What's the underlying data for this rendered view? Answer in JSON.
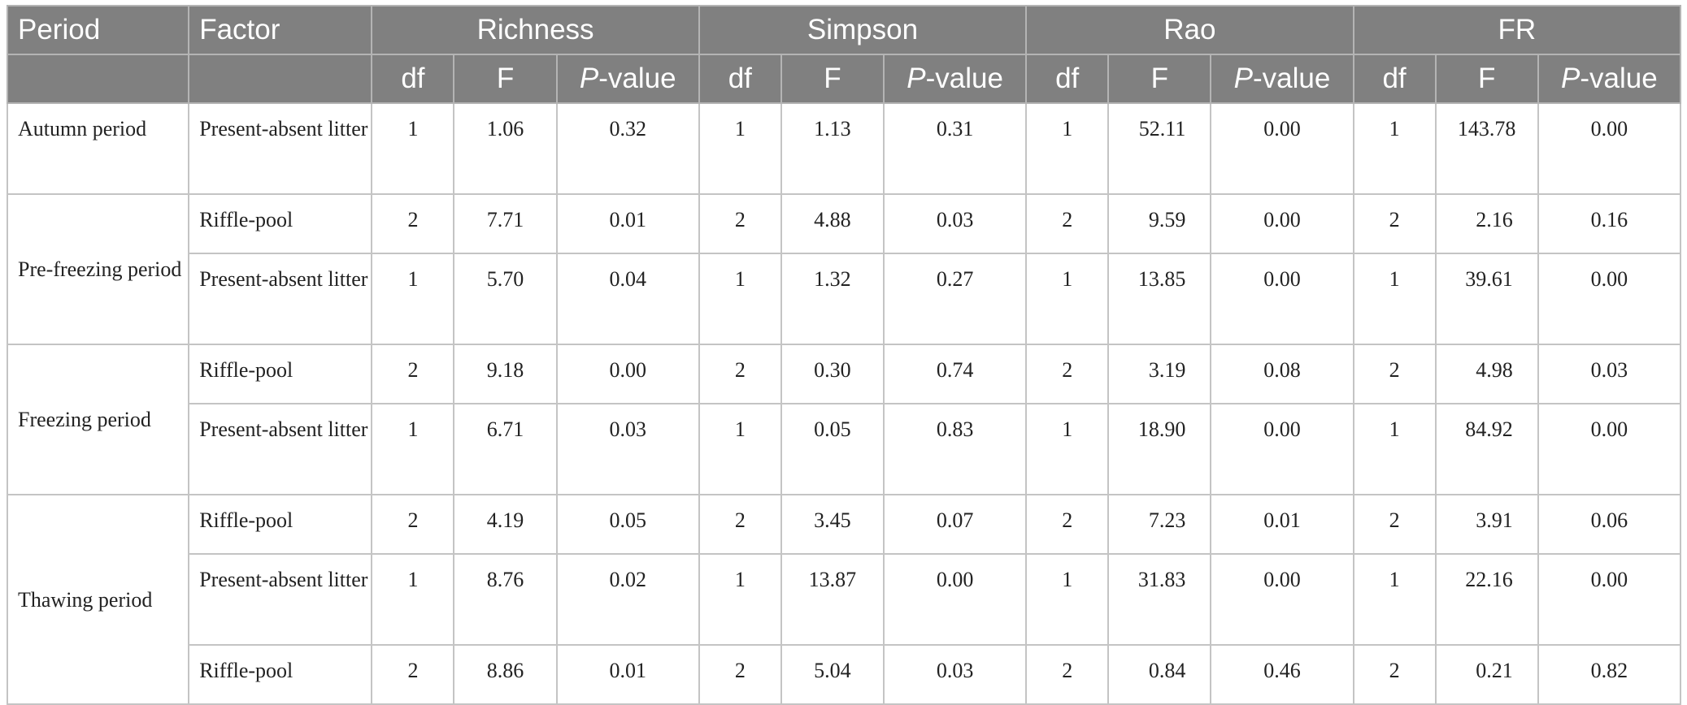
{
  "header": {
    "period": "Period",
    "factor": "Factor",
    "groups": [
      "Richness",
      "Simpson",
      "Rao",
      "FR"
    ],
    "sub_df": "df",
    "sub_f": "F",
    "sub_p_italic": "P",
    "sub_p_rest": "-value"
  },
  "rows": [
    {
      "period": "Autumn period",
      "factor": "Present-absent litter",
      "v": [
        "1",
        "1.06",
        "0.32",
        "1",
        "1.13",
        "0.31",
        "1",
        "52.11",
        "0.00",
        "1",
        "143.78",
        "0.00"
      ]
    },
    {
      "period": "Pre-freezing period",
      "factor": "Riffle-pool",
      "v": [
        "2",
        "7.71",
        "0.01",
        "2",
        "4.88",
        "0.03",
        "2",
        "9.59",
        "0.00",
        "2",
        "2.16",
        "0.16"
      ]
    },
    {
      "period": "",
      "factor": "Present-absent litter",
      "v": [
        "1",
        "5.70",
        "0.04",
        "1",
        "1.32",
        "0.27",
        "1",
        "13.85",
        "0.00",
        "1",
        "39.61",
        "0.00"
      ]
    },
    {
      "period": "Freezing period",
      "factor": "Riffle-pool",
      "v": [
        "2",
        "9.18",
        "0.00",
        "2",
        "0.30",
        "0.74",
        "2",
        "3.19",
        "0.08",
        "2",
        "4.98",
        "0.03"
      ]
    },
    {
      "period": "",
      "factor": "Present-absent litter",
      "v": [
        "1",
        "6.71",
        "0.03",
        "1",
        "0.05",
        "0.83",
        "1",
        "18.90",
        "0.00",
        "1",
        "84.92",
        "0.00"
      ]
    },
    {
      "period": "Thawing period",
      "factor": "Riffle-pool",
      "v": [
        "2",
        "4.19",
        "0.05",
        "2",
        "3.45",
        "0.07",
        "2",
        "7.23",
        "0.01",
        "2",
        "3.91",
        "0.06"
      ]
    },
    {
      "period": "",
      "factor": "Present-absent litter",
      "v": [
        "1",
        "8.76",
        "0.02",
        "1",
        "13.87",
        "0.00",
        "1",
        "31.83",
        "0.00",
        "1",
        "22.16",
        "0.00"
      ]
    },
    {
      "period": "",
      "factor": "Riffle-pool",
      "v": [
        "2",
        "8.86",
        "0.01",
        "2",
        "5.04",
        "0.03",
        "2",
        "0.84",
        "0.46",
        "2",
        "0.21",
        "0.82"
      ]
    }
  ]
}
